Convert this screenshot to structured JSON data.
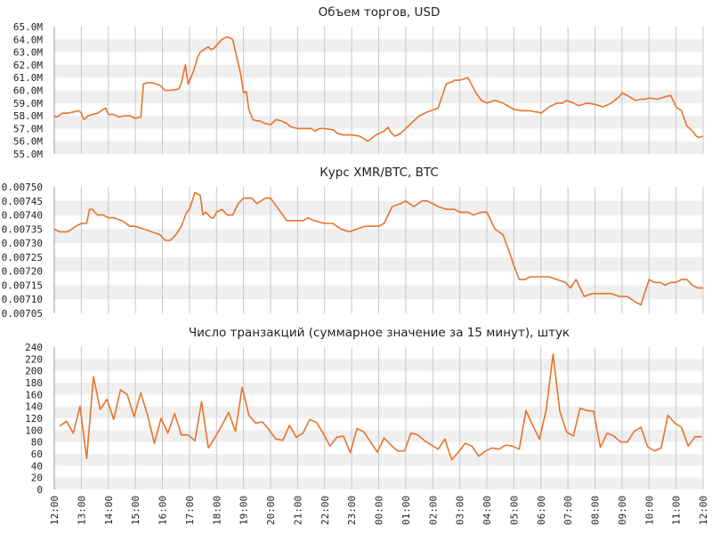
{
  "chart_data": [
    {
      "type": "line",
      "title": "Объем торгов, USD",
      "ylim": [
        55.0,
        65.0
      ],
      "y_ticks": [
        "65.0M",
        "64.0M",
        "63.0M",
        "62.0M",
        "61.0M",
        "60.0M",
        "59.0M",
        "58.0M",
        "57.0M",
        "56.0M",
        "55.0M"
      ],
      "y_tick_values": [
        65,
        64,
        63,
        62,
        61,
        60,
        59,
        58,
        57,
        56,
        55
      ],
      "x_range_hours": [
        0,
        24
      ],
      "line_color": "#e8732a",
      "series": [
        {
          "x": [
            0,
            0.1,
            0.3,
            0.5,
            0.7,
            0.9,
            1.0,
            1.1,
            1.25,
            1.4,
            1.6,
            1.8,
            1.9,
            2.0,
            2.2,
            2.4,
            2.6,
            2.8,
            3.0,
            3.2,
            3.3,
            3.45,
            3.6,
            3.9,
            4.1,
            4.3,
            4.6,
            4.7,
            4.85,
            4.95,
            5.05,
            5.15,
            5.25,
            5.3,
            5.4,
            5.6,
            5.7,
            5.8,
            5.9,
            6.2,
            6.4,
            6.6,
            6.9,
            7.0,
            7.1,
            7.2,
            7.35,
            7.5,
            7.6,
            7.7,
            7.8,
            8.0,
            8.2,
            8.4,
            8.5,
            8.6,
            8.7,
            8.8,
            9.0,
            9.3,
            9.5,
            9.65,
            9.8,
            10.0,
            10.3,
            10.5,
            10.7,
            11.0,
            11.3,
            11.6,
            11.9,
            12.2,
            12.35,
            12.45,
            12.6,
            12.8,
            13.0,
            13.3,
            13.5,
            13.8,
            14.2,
            14.5,
            14.75,
            14.8,
            15.0,
            15.3,
            15.6,
            15.8,
            16.0,
            16.3,
            16.6,
            17.0,
            17.3,
            17.6,
            17.8,
            17.9,
            18.0,
            18.3,
            18.6,
            18.8,
            18.95,
            19.2,
            19.4,
            19.7,
            20.0,
            20.3,
            20.6,
            20.9,
            21.0,
            21.2,
            21.5,
            21.7,
            21.85,
            22.0,
            22.3,
            22.6,
            22.8,
            23.0,
            23.2,
            23.4,
            23.6,
            23.75,
            23.85,
            24.0
          ],
          "y": [
            58.0,
            57.9,
            58.2,
            58.2,
            58.3,
            58.4,
            58.2,
            57.7,
            58.0,
            58.1,
            58.2,
            58.5,
            58.6,
            58.1,
            58.1,
            57.9,
            58.0,
            58.0,
            57.8,
            57.9,
            60.5,
            60.6,
            60.6,
            60.4,
            60.0,
            60.0,
            60.1,
            60.6,
            62.0,
            60.5,
            61.0,
            61.5,
            62.2,
            62.6,
            63.0,
            63.3,
            63.4,
            63.2,
            63.3,
            64.0,
            64.2,
            64.0,
            61.2,
            59.8,
            59.9,
            58.5,
            57.7,
            57.6,
            57.6,
            57.5,
            57.4,
            57.3,
            57.7,
            57.6,
            57.5,
            57.4,
            57.2,
            57.1,
            57.0,
            57.0,
            57.0,
            56.8,
            57.0,
            57.0,
            56.9,
            56.6,
            56.5,
            56.5,
            56.4,
            56.0,
            56.5,
            56.8,
            57.1,
            56.7,
            56.4,
            56.6,
            57.0,
            57.6,
            58.0,
            58.3,
            58.6,
            60.5,
            60.7,
            60.8,
            60.8,
            61.0,
            59.8,
            59.2,
            59.0,
            59.2,
            59.0,
            58.5,
            58.4,
            58.4,
            58.3,
            58.3,
            58.2,
            58.7,
            59.0,
            59.0,
            59.2,
            59.0,
            58.8,
            59.0,
            58.9,
            58.7,
            59.0,
            59.5,
            59.8,
            59.6,
            59.2,
            59.3,
            59.3,
            59.4,
            59.3,
            59.5,
            59.6,
            58.7,
            58.4,
            57.2,
            56.8,
            56.4,
            56.3,
            56.4
          ]
        }
      ]
    },
    {
      "type": "line",
      "title": "Курс XMR/BTC, BTC",
      "ylim": [
        0.00705,
        0.0075
      ],
      "y_ticks": [
        "0.00750",
        "0.00745",
        "0.00740",
        "0.00735",
        "0.00730",
        "0.00725",
        "0.00720",
        "0.00715",
        "0.00710",
        "0.00705"
      ],
      "y_tick_values": [
        0.0075,
        0.00745,
        0.0074,
        0.00735,
        0.0073,
        0.00725,
        0.0072,
        0.00715,
        0.0071,
        0.00705
      ],
      "x_range_hours": [
        0,
        24
      ],
      "line_color": "#e8732a",
      "series": [
        {
          "x": [
            0,
            0.2,
            0.5,
            0.8,
            1.0,
            1.2,
            1.3,
            1.4,
            1.6,
            1.8,
            2.0,
            2.2,
            2.5,
            2.8,
            3.0,
            3.3,
            3.6,
            3.9,
            4.1,
            4.3,
            4.5,
            4.7,
            4.9,
            5.0,
            5.2,
            5.4,
            5.5,
            5.6,
            5.7,
            5.8,
            5.9,
            6.0,
            6.2,
            6.4,
            6.6,
            6.8,
            7.0,
            7.3,
            7.5,
            7.8,
            8.0,
            8.3,
            8.6,
            8.8,
            9.0,
            9.2,
            9.4,
            9.6,
            10.0,
            10.3,
            10.6,
            10.9,
            11.2,
            11.5,
            11.7,
            12.0,
            12.2,
            12.5,
            12.8,
            13.0,
            13.3,
            13.6,
            13.8,
            14.0,
            14.2,
            14.5,
            14.8,
            15.0,
            15.3,
            15.5,
            15.8,
            16.0,
            16.3,
            16.6,
            16.9,
            17.0,
            17.2,
            17.4,
            17.6,
            17.8,
            18.0,
            18.3,
            18.6,
            18.9,
            19.1,
            19.3,
            19.6,
            19.9,
            20.1,
            20.3,
            20.6,
            20.9,
            21.2,
            21.5,
            21.7,
            22.0,
            22.2,
            22.4,
            22.6,
            22.8,
            23.0,
            23.2,
            23.4,
            23.6,
            23.8,
            24.0
          ],
          "y": [
            0.00735,
            0.00734,
            0.00734,
            0.00736,
            0.00737,
            0.00737,
            0.00742,
            0.00742,
            0.0074,
            0.0074,
            0.00739,
            0.00739,
            0.00738,
            0.00736,
            0.00736,
            0.00735,
            0.00734,
            0.00733,
            0.00731,
            0.00731,
            0.00733,
            0.00736,
            0.00741,
            0.00742,
            0.00748,
            0.00747,
            0.0074,
            0.00741,
            0.0074,
            0.00739,
            0.00739,
            0.00741,
            0.00742,
            0.0074,
            0.0074,
            0.00744,
            0.00746,
            0.00746,
            0.00744,
            0.00746,
            0.00746,
            0.00742,
            0.00738,
            0.00738,
            0.00738,
            0.00738,
            0.00739,
            0.00738,
            0.00737,
            0.00737,
            0.00735,
            0.00734,
            0.00735,
            0.00736,
            0.00736,
            0.00736,
            0.00737,
            0.00743,
            0.00744,
            0.00745,
            0.00743,
            0.00745,
            0.00745,
            0.00744,
            0.00743,
            0.00742,
            0.00742,
            0.00741,
            0.00741,
            0.0074,
            0.00741,
            0.00741,
            0.00735,
            0.00733,
            0.00725,
            0.00722,
            0.00717,
            0.00717,
            0.00718,
            0.00718,
            0.00718,
            0.00718,
            0.00717,
            0.00716,
            0.00714,
            0.00717,
            0.00711,
            0.00712,
            0.00712,
            0.00712,
            0.00712,
            0.00711,
            0.00711,
            0.00709,
            0.00708,
            0.00717,
            0.00716,
            0.00716,
            0.00715,
            0.00716,
            0.00716,
            0.00717,
            0.00717,
            0.00715,
            0.00714,
            0.00714
          ]
        }
      ]
    },
    {
      "type": "line",
      "title": "Число транзакций (суммарное значение за 15 минут), штук",
      "ylim": [
        0,
        240
      ],
      "y_ticks": [
        "240",
        "220",
        "200",
        "180",
        "160",
        "140",
        "120",
        "100",
        "80",
        "60",
        "40",
        "20",
        "0"
      ],
      "y_tick_values": [
        240,
        220,
        200,
        180,
        160,
        140,
        120,
        100,
        80,
        60,
        40,
        20,
        0
      ],
      "x_range_hours": [
        0,
        24
      ],
      "line_color": "#e8732a",
      "series": [
        {
          "x": [
            0.2,
            0.45,
            0.7,
            0.95,
            1.2,
            1.45,
            1.7,
            1.95,
            2.2,
            2.45,
            2.7,
            2.95,
            3.2,
            3.45,
            3.7,
            3.95,
            4.2,
            4.45,
            4.7,
            4.95,
            5.2,
            5.45,
            5.7,
            5.95,
            6.2,
            6.45,
            6.7,
            6.95,
            7.2,
            7.45,
            7.7,
            7.95,
            8.2,
            8.45,
            8.7,
            8.95,
            9.2,
            9.45,
            9.7,
            9.95,
            10.2,
            10.45,
            10.7,
            10.95,
            11.2,
            11.45,
            11.7,
            11.95,
            12.2,
            12.45,
            12.7,
            12.95,
            13.2,
            13.45,
            13.7,
            13.95,
            14.2,
            14.45,
            14.7,
            14.95,
            15.2,
            15.45,
            15.7,
            15.95,
            16.2,
            16.45,
            16.7,
            16.95,
            17.2,
            17.45,
            17.7,
            17.95,
            18.2,
            18.45,
            18.7,
            18.95,
            19.2,
            19.45,
            19.7,
            19.95,
            20.2,
            20.45,
            20.7,
            20.95,
            21.2,
            21.45,
            21.7,
            21.95,
            22.2,
            22.45,
            22.7,
            22.95,
            23.2,
            23.45,
            23.7,
            23.95
          ],
          "y": [
            107,
            115,
            95,
            140,
            52,
            190,
            135,
            152,
            118,
            168,
            160,
            123,
            163,
            125,
            78,
            120,
            95,
            128,
            92,
            92,
            82,
            148,
            70,
            88,
            108,
            130,
            98,
            172,
            125,
            112,
            114,
            100,
            85,
            83,
            108,
            88,
            95,
            118,
            113,
            95,
            73,
            88,
            90,
            62,
            103,
            97,
            80,
            63,
            87,
            75,
            65,
            65,
            95,
            92,
            82,
            75,
            68,
            85,
            50,
            63,
            78,
            73,
            56,
            65,
            70,
            68,
            75,
            73,
            68,
            133,
            108,
            85,
            135,
            228,
            132,
            97,
            90,
            137,
            133,
            132,
            71,
            95,
            90,
            80,
            80,
            98,
            105,
            72,
            65,
            70,
            125,
            112,
            105,
            73,
            89,
            89
          ]
        }
      ]
    }
  ],
  "x_axis": {
    "tick_labels": [
      "12:00",
      "13:00",
      "14:00",
      "15:00",
      "16:00",
      "17:00",
      "18:00",
      "19:00",
      "20:00",
      "21:00",
      "22:00",
      "23:00",
      "00:00",
      "01:00",
      "02:00",
      "03:00",
      "04:00",
      "05:00",
      "06:00",
      "07:00",
      "08:00",
      "09:00",
      "10:00",
      "11:00",
      "12:00"
    ],
    "tick_hours": [
      0,
      1,
      2,
      3,
      4,
      5,
      6,
      7,
      8,
      9,
      10,
      11,
      12,
      13,
      14,
      15,
      16,
      17,
      18,
      19,
      20,
      21,
      22,
      23,
      24
    ]
  },
  "colors": {
    "band": "#efefef",
    "grid": "#c8c8c8",
    "line": "#e8732a"
  }
}
